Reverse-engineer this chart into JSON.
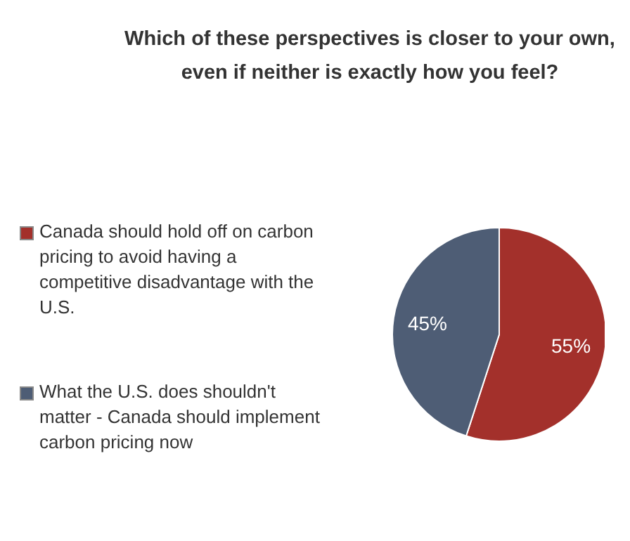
{
  "chart_data": {
    "type": "pie",
    "title": "Which of these perspectives is closer to your own, even if neither is exactly how you feel?",
    "categories": [
      "Canada should hold off on carbon pricing to avoid having a competitive disadvantage with the U.S.",
      "What the U.S. does shouldn't matter - Canada should implement carbon pricing now"
    ],
    "values": [
      55,
      45
    ],
    "colors": [
      "#a3302b",
      "#4e5d75"
    ],
    "value_labels": [
      "55%",
      "45%"
    ],
    "legend": "left"
  }
}
